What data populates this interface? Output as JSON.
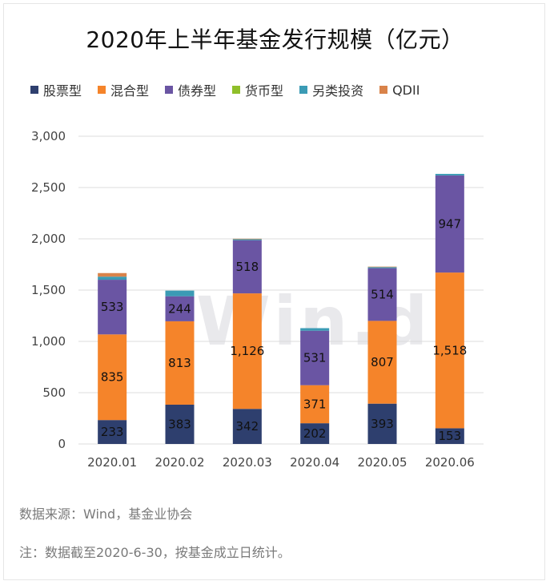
{
  "chart_data": {
    "type": "bar",
    "stacked": true,
    "title": "2020年上半年基金发行规模（亿元）",
    "categories": [
      "2020.01",
      "2020.02",
      "2020.03",
      "2020.04",
      "2020.05",
      "2020.06"
    ],
    "series": [
      {
        "name": "股票型",
        "color": "#2e3f6e",
        "values": [
          233,
          383,
          342,
          202,
          393,
          153
        ]
      },
      {
        "name": "混合型",
        "color": "#f5842a",
        "values": [
          835,
          813,
          1126,
          371,
          807,
          1518
        ]
      },
      {
        "name": "债券型",
        "color": "#6a55a3",
        "values": [
          533,
          244,
          518,
          531,
          514,
          947
        ]
      },
      {
        "name": "货币型",
        "color": "#8fbf2a",
        "values": [
          0,
          0,
          0,
          0,
          0,
          0
        ]
      },
      {
        "name": "另类投资",
        "color": "#3b9bb5",
        "values": [
          30,
          55,
          10,
          25,
          10,
          15
        ]
      },
      {
        "name": "QDII",
        "color": "#d9834a",
        "values": [
          35,
          0,
          5,
          0,
          5,
          0
        ]
      }
    ],
    "data_labels": [
      {
        "series": 0,
        "values": [
          "233",
          "383",
          "342",
          "202",
          "393",
          "153"
        ]
      },
      {
        "series": 1,
        "values": [
          "835",
          "813",
          "1,126",
          "371",
          "807",
          "1,518"
        ]
      },
      {
        "series": 2,
        "values": [
          "533",
          "244",
          "518",
          "531",
          "514",
          "947"
        ]
      }
    ],
    "ylim": [
      0,
      3000
    ],
    "yticks": [
      0,
      500,
      1000,
      1500,
      2000,
      2500,
      3000
    ],
    "ytick_labels": [
      "0",
      "500",
      "1,000",
      "1,500",
      "2,000",
      "2,500",
      "3,000"
    ],
    "grid": true,
    "legend_position": "top",
    "xlabel": "",
    "ylabel": ""
  },
  "watermark": "Wind",
  "source_text": "数据来源：Wind，基金业协会",
  "note_text": "注：数据截至2020-6-30，按基金成立日统计。"
}
